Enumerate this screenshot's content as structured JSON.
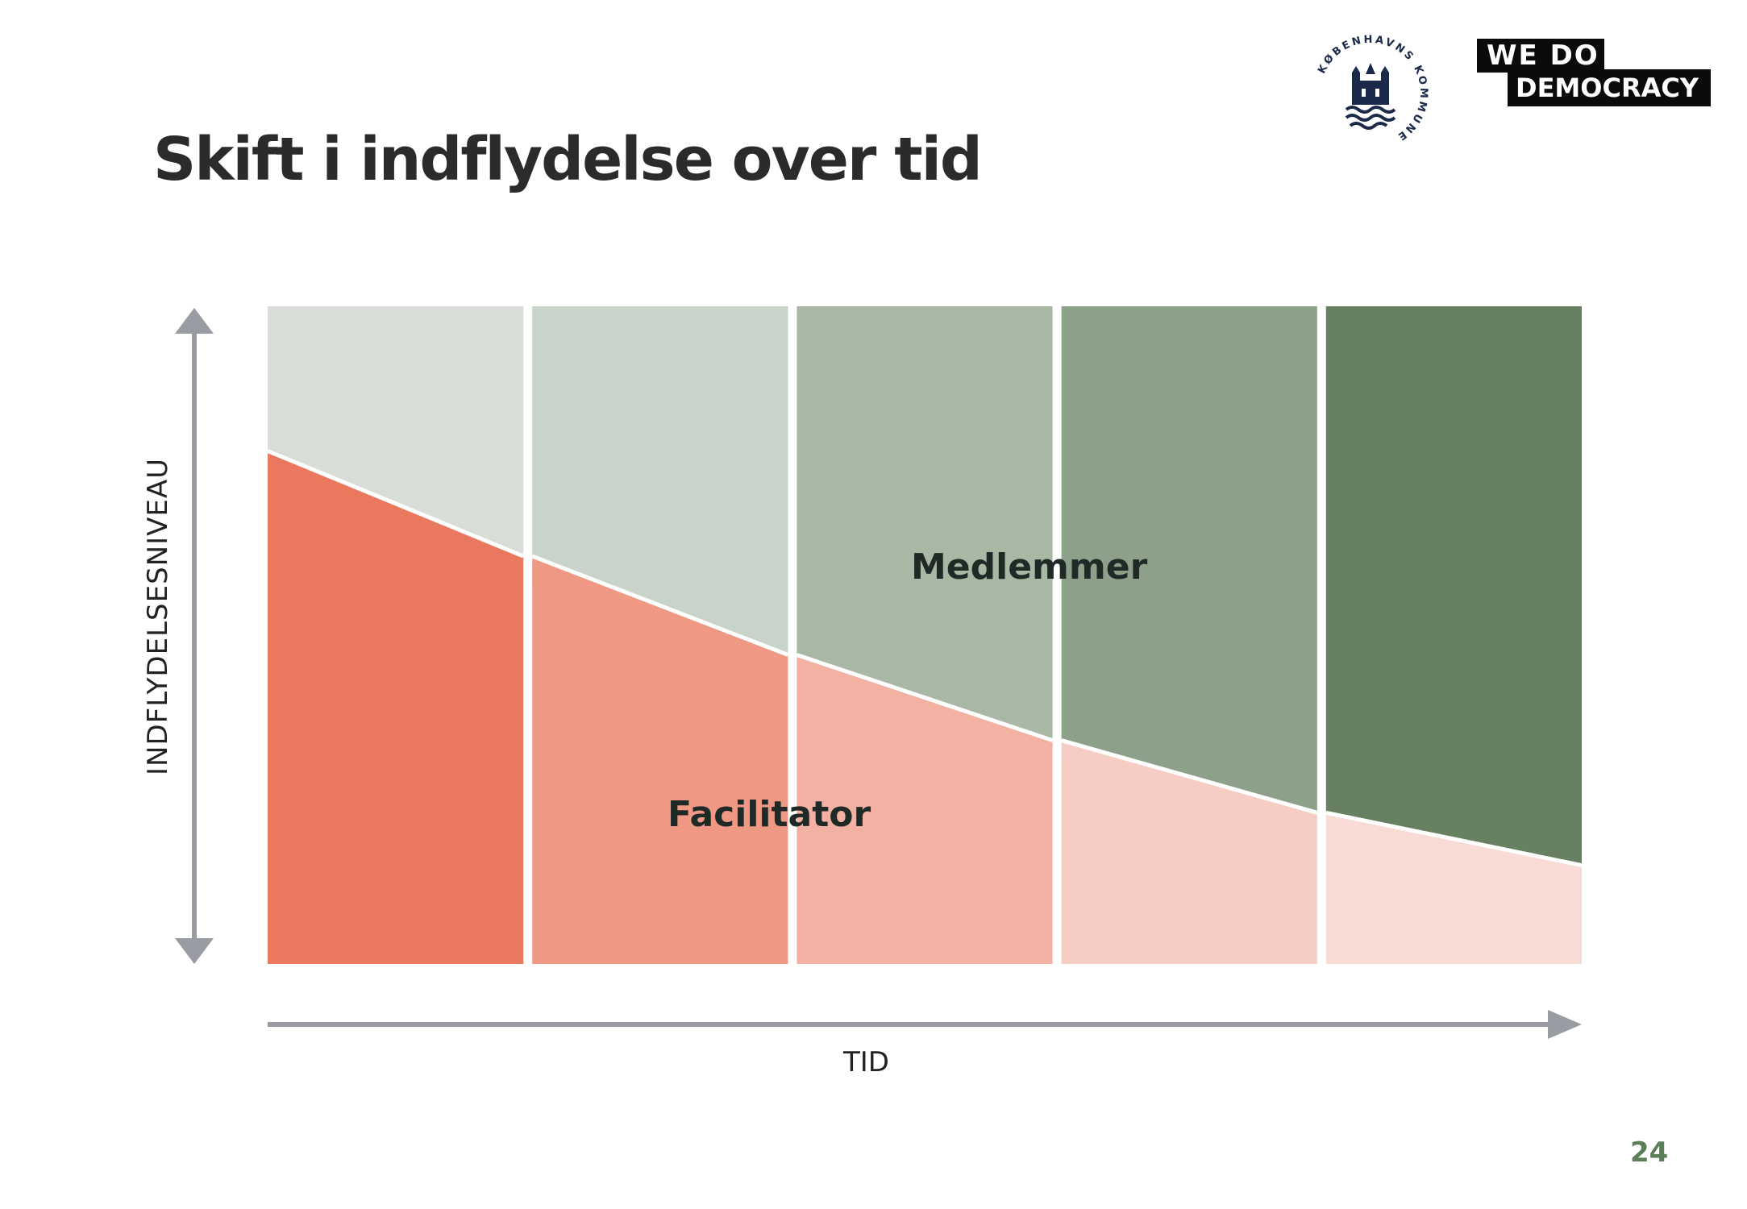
{
  "slide": {
    "title": "Skift i indflydelse over tid",
    "page_number": "24"
  },
  "logos": {
    "city": {
      "ring_text": "KØBENHAVNS KOMMUNE"
    },
    "org": {
      "line1": "WE DO",
      "line2": "DEMOCRACY"
    }
  },
  "diagram": {
    "y_axis_label": "INDFLYDELSESNIVEAU",
    "x_axis_label": "TID",
    "upper_region_label": "Medlemmer",
    "lower_region_label": "Facilitator",
    "boundary_levels": [
      0.78,
      0.62,
      0.47,
      0.34,
      0.23,
      0.15
    ],
    "member_colors": [
      "#d8ddd7",
      "#c8d3c9",
      "#a9b8a5",
      "#8ca08a",
      "#668061"
    ],
    "facilitator_colors": [
      "#e9785f",
      "#ef9985",
      "#f3b1a4",
      "#f6cdc4",
      "#f8dbd5"
    ],
    "axis_color": "#9a9ca4"
  }
}
